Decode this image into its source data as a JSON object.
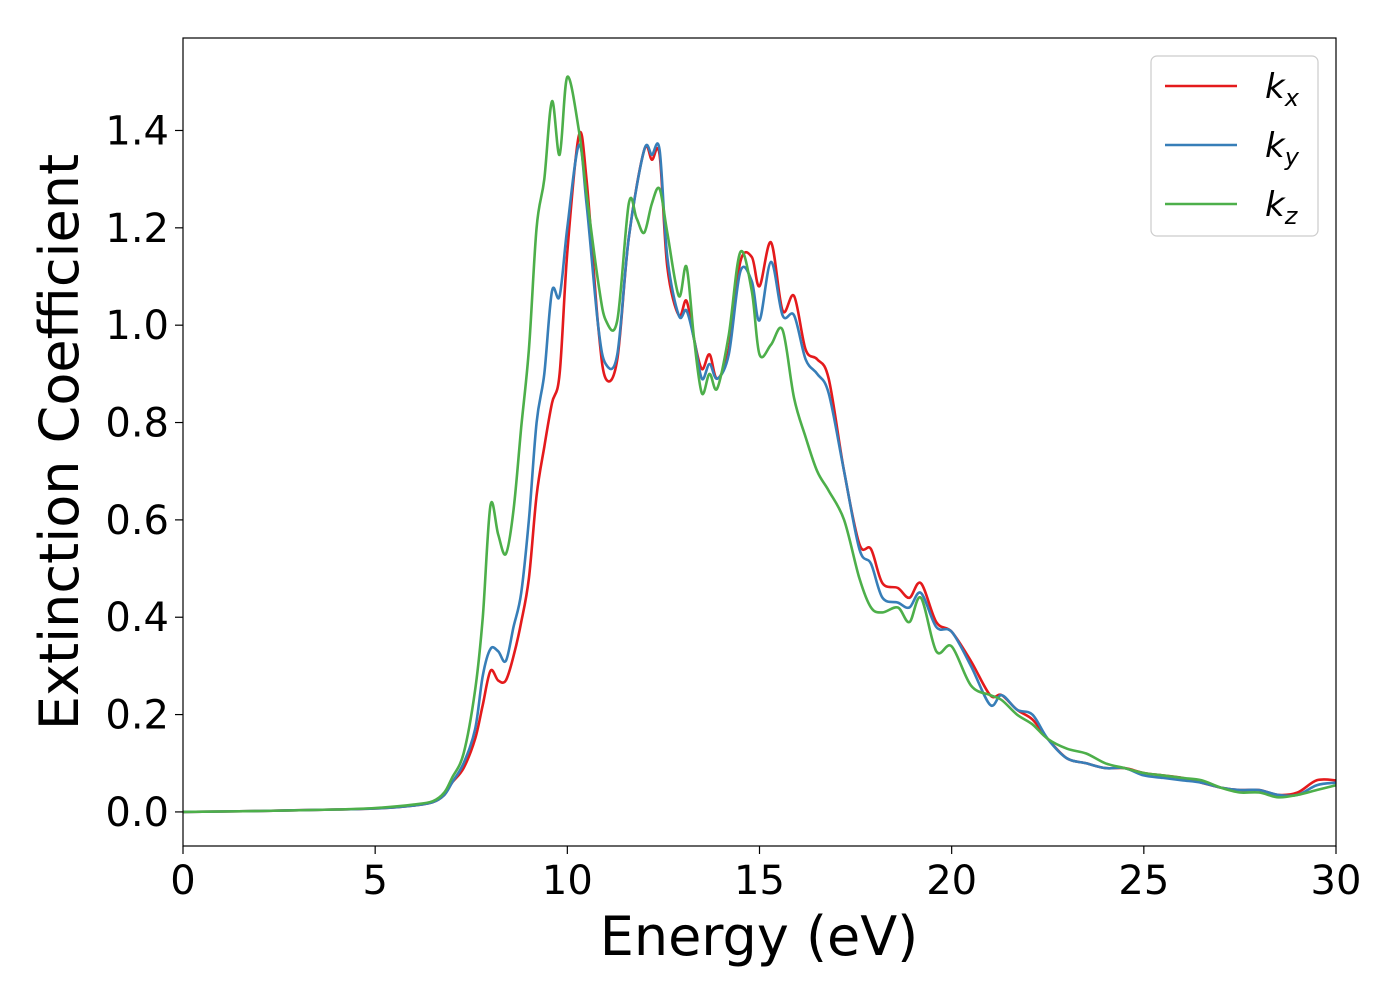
{
  "chart_data": {
    "type": "line",
    "xlabel": "Energy (eV)",
    "ylabel": "Extinction Coefficient",
    "xlim": [
      0,
      30
    ],
    "ylim": [
      -0.07,
      1.59
    ],
    "xticks": [
      0,
      5,
      10,
      15,
      20,
      25,
      30
    ],
    "xtick_labels": [
      "0",
      "5",
      "10",
      "15",
      "20",
      "25",
      "30"
    ],
    "yticks": [
      0.0,
      0.2,
      0.4,
      0.6,
      0.8,
      1.0,
      1.2,
      1.4
    ],
    "ytick_labels": [
      "0.0",
      "0.2",
      "0.4",
      "0.6",
      "0.8",
      "1.0",
      "1.2",
      "1.4"
    ],
    "grid": false,
    "legend_position": "top-right",
    "series": [
      {
        "name": "k_x",
        "label_main": "k",
        "label_sub": "x",
        "color": "#e41a1c",
        "points": [
          [
            0,
            0.0
          ],
          [
            2,
            0.002
          ],
          [
            4,
            0.005
          ],
          [
            5,
            0.007
          ],
          [
            6,
            0.013
          ],
          [
            6.5,
            0.02
          ],
          [
            6.8,
            0.035
          ],
          [
            7.0,
            0.06
          ],
          [
            7.3,
            0.09
          ],
          [
            7.6,
            0.15
          ],
          [
            7.8,
            0.22
          ],
          [
            8.0,
            0.29
          ],
          [
            8.2,
            0.27
          ],
          [
            8.4,
            0.27
          ],
          [
            8.6,
            0.32
          ],
          [
            8.8,
            0.39
          ],
          [
            9.0,
            0.48
          ],
          [
            9.2,
            0.65
          ],
          [
            9.4,
            0.75
          ],
          [
            9.6,
            0.84
          ],
          [
            9.8,
            0.9
          ],
          [
            10.0,
            1.15
          ],
          [
            10.3,
            1.39
          ],
          [
            10.5,
            1.3
          ],
          [
            10.8,
            1.0
          ],
          [
            11.0,
            0.89
          ],
          [
            11.3,
            0.93
          ],
          [
            11.6,
            1.18
          ],
          [
            12.0,
            1.36
          ],
          [
            12.2,
            1.34
          ],
          [
            12.4,
            1.35
          ],
          [
            12.6,
            1.12
          ],
          [
            12.9,
            1.02
          ],
          [
            13.1,
            1.05
          ],
          [
            13.3,
            0.97
          ],
          [
            13.5,
            0.91
          ],
          [
            13.7,
            0.94
          ],
          [
            13.9,
            0.89
          ],
          [
            14.2,
            0.95
          ],
          [
            14.5,
            1.13
          ],
          [
            14.8,
            1.14
          ],
          [
            15.0,
            1.08
          ],
          [
            15.3,
            1.17
          ],
          [
            15.6,
            1.03
          ],
          [
            15.9,
            1.06
          ],
          [
            16.2,
            0.95
          ],
          [
            16.5,
            0.93
          ],
          [
            16.8,
            0.89
          ],
          [
            17.2,
            0.7
          ],
          [
            17.6,
            0.55
          ],
          [
            17.9,
            0.54
          ],
          [
            18.2,
            0.47
          ],
          [
            18.6,
            0.46
          ],
          [
            18.9,
            0.44
          ],
          [
            19.2,
            0.47
          ],
          [
            19.6,
            0.39
          ],
          [
            20.0,
            0.37
          ],
          [
            20.5,
            0.31
          ],
          [
            21.0,
            0.24
          ],
          [
            21.3,
            0.24
          ],
          [
            21.7,
            0.21
          ],
          [
            22.1,
            0.19
          ],
          [
            22.5,
            0.15
          ],
          [
            23.0,
            0.11
          ],
          [
            23.5,
            0.1
          ],
          [
            24.0,
            0.09
          ],
          [
            24.5,
            0.09
          ],
          [
            25.0,
            0.08
          ],
          [
            25.5,
            0.075
          ],
          [
            26.0,
            0.07
          ],
          [
            26.5,
            0.06
          ],
          [
            27.0,
            0.05
          ],
          [
            27.5,
            0.045
          ],
          [
            28.0,
            0.045
          ],
          [
            28.5,
            0.035
          ],
          [
            29.0,
            0.04
          ],
          [
            29.5,
            0.065
          ],
          [
            30.0,
            0.065
          ]
        ]
      },
      {
        "name": "k_y",
        "label_main": "k",
        "label_sub": "y",
        "color": "#377eb8",
        "points": [
          [
            0,
            0.0
          ],
          [
            2,
            0.002
          ],
          [
            4,
            0.005
          ],
          [
            5,
            0.007
          ],
          [
            6,
            0.013
          ],
          [
            6.5,
            0.02
          ],
          [
            6.8,
            0.035
          ],
          [
            7.0,
            0.06
          ],
          [
            7.3,
            0.1
          ],
          [
            7.6,
            0.17
          ],
          [
            7.8,
            0.28
          ],
          [
            8.0,
            0.335
          ],
          [
            8.2,
            0.33
          ],
          [
            8.4,
            0.31
          ],
          [
            8.6,
            0.38
          ],
          [
            8.8,
            0.45
          ],
          [
            9.0,
            0.6
          ],
          [
            9.2,
            0.8
          ],
          [
            9.4,
            0.9
          ],
          [
            9.6,
            1.07
          ],
          [
            9.8,
            1.06
          ],
          [
            10.0,
            1.2
          ],
          [
            10.3,
            1.37
          ],
          [
            10.5,
            1.25
          ],
          [
            10.8,
            1.0
          ],
          [
            11.0,
            0.92
          ],
          [
            11.3,
            0.94
          ],
          [
            11.6,
            1.18
          ],
          [
            12.0,
            1.36
          ],
          [
            12.2,
            1.35
          ],
          [
            12.4,
            1.36
          ],
          [
            12.6,
            1.14
          ],
          [
            12.9,
            1.02
          ],
          [
            13.1,
            1.03
          ],
          [
            13.3,
            0.97
          ],
          [
            13.5,
            0.89
          ],
          [
            13.7,
            0.92
          ],
          [
            13.9,
            0.89
          ],
          [
            14.2,
            0.94
          ],
          [
            14.5,
            1.11
          ],
          [
            14.8,
            1.09
          ],
          [
            15.0,
            1.01
          ],
          [
            15.3,
            1.13
          ],
          [
            15.6,
            1.02
          ],
          [
            15.9,
            1.02
          ],
          [
            16.2,
            0.93
          ],
          [
            16.5,
            0.9
          ],
          [
            16.8,
            0.86
          ],
          [
            17.2,
            0.7
          ],
          [
            17.6,
            0.54
          ],
          [
            17.9,
            0.51
          ],
          [
            18.2,
            0.44
          ],
          [
            18.6,
            0.43
          ],
          [
            18.9,
            0.42
          ],
          [
            19.2,
            0.45
          ],
          [
            19.6,
            0.38
          ],
          [
            20.0,
            0.37
          ],
          [
            20.5,
            0.3
          ],
          [
            21.0,
            0.22
          ],
          [
            21.3,
            0.24
          ],
          [
            21.7,
            0.21
          ],
          [
            22.1,
            0.2
          ],
          [
            22.5,
            0.15
          ],
          [
            23.0,
            0.11
          ],
          [
            23.5,
            0.1
          ],
          [
            24.0,
            0.09
          ],
          [
            24.5,
            0.09
          ],
          [
            25.0,
            0.075
          ],
          [
            25.5,
            0.07
          ],
          [
            26.0,
            0.065
          ],
          [
            26.5,
            0.06
          ],
          [
            27.0,
            0.05
          ],
          [
            27.5,
            0.045
          ],
          [
            28.0,
            0.045
          ],
          [
            28.5,
            0.035
          ],
          [
            29.0,
            0.035
          ],
          [
            29.5,
            0.055
          ],
          [
            30.0,
            0.06
          ]
        ]
      },
      {
        "name": "k_z",
        "label_main": "k",
        "label_sub": "z",
        "color": "#4daf4a",
        "points": [
          [
            0,
            0.0
          ],
          [
            2,
            0.002
          ],
          [
            4,
            0.005
          ],
          [
            5,
            0.008
          ],
          [
            6,
            0.015
          ],
          [
            6.5,
            0.022
          ],
          [
            6.8,
            0.04
          ],
          [
            7.0,
            0.07
          ],
          [
            7.3,
            0.12
          ],
          [
            7.6,
            0.25
          ],
          [
            7.8,
            0.4
          ],
          [
            8.0,
            0.63
          ],
          [
            8.2,
            0.57
          ],
          [
            8.4,
            0.53
          ],
          [
            8.6,
            0.62
          ],
          [
            8.8,
            0.79
          ],
          [
            9.0,
            0.95
          ],
          [
            9.2,
            1.2
          ],
          [
            9.4,
            1.3
          ],
          [
            9.6,
            1.46
          ],
          [
            9.8,
            1.35
          ],
          [
            10.0,
            1.51
          ],
          [
            10.3,
            1.4
          ],
          [
            10.5,
            1.27
          ],
          [
            10.8,
            1.09
          ],
          [
            11.0,
            1.01
          ],
          [
            11.3,
            1.01
          ],
          [
            11.6,
            1.25
          ],
          [
            11.8,
            1.22
          ],
          [
            12.0,
            1.19
          ],
          [
            12.2,
            1.25
          ],
          [
            12.4,
            1.28
          ],
          [
            12.6,
            1.19
          ],
          [
            12.9,
            1.06
          ],
          [
            13.1,
            1.12
          ],
          [
            13.3,
            0.97
          ],
          [
            13.5,
            0.86
          ],
          [
            13.7,
            0.9
          ],
          [
            13.9,
            0.87
          ],
          [
            14.2,
            0.98
          ],
          [
            14.5,
            1.15
          ],
          [
            14.8,
            1.07
          ],
          [
            15.0,
            0.94
          ],
          [
            15.3,
            0.96
          ],
          [
            15.6,
            0.99
          ],
          [
            15.9,
            0.85
          ],
          [
            16.2,
            0.77
          ],
          [
            16.5,
            0.7
          ],
          [
            16.8,
            0.66
          ],
          [
            17.2,
            0.6
          ],
          [
            17.6,
            0.48
          ],
          [
            17.9,
            0.42
          ],
          [
            18.2,
            0.41
          ],
          [
            18.6,
            0.42
          ],
          [
            18.9,
            0.39
          ],
          [
            19.2,
            0.44
          ],
          [
            19.6,
            0.33
          ],
          [
            20.0,
            0.34
          ],
          [
            20.5,
            0.26
          ],
          [
            21.0,
            0.24
          ],
          [
            21.3,
            0.23
          ],
          [
            21.7,
            0.2
          ],
          [
            22.1,
            0.18
          ],
          [
            22.5,
            0.15
          ],
          [
            23.0,
            0.13
          ],
          [
            23.5,
            0.12
          ],
          [
            24.0,
            0.1
          ],
          [
            24.5,
            0.09
          ],
          [
            25.0,
            0.08
          ],
          [
            25.5,
            0.075
          ],
          [
            26.0,
            0.07
          ],
          [
            26.5,
            0.065
          ],
          [
            27.0,
            0.05
          ],
          [
            27.5,
            0.04
          ],
          [
            28.0,
            0.04
          ],
          [
            28.5,
            0.03
          ],
          [
            29.0,
            0.035
          ],
          [
            29.5,
            0.045
          ],
          [
            30.0,
            0.055
          ]
        ]
      }
    ]
  }
}
